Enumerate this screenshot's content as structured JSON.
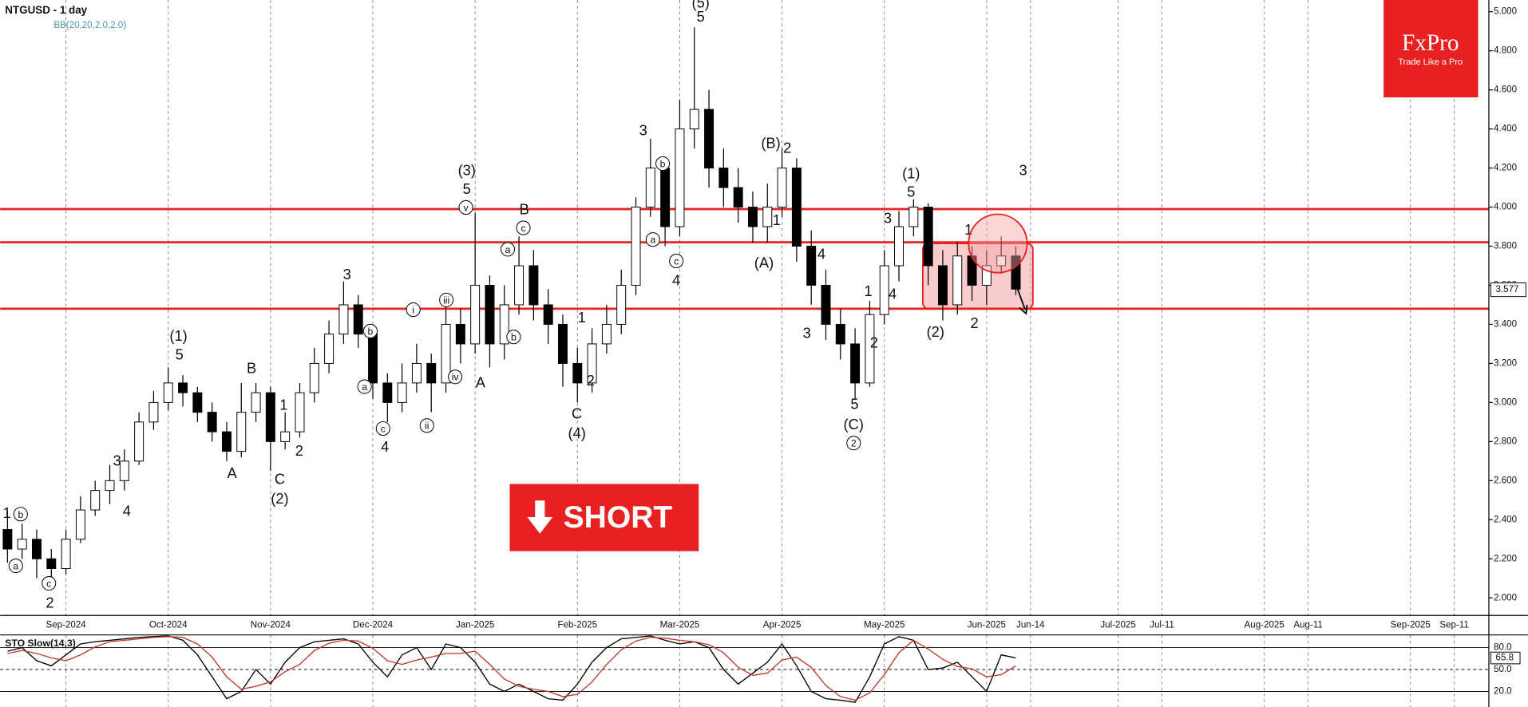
{
  "chart_data": [
    {
      "type": "candlestick",
      "title": "NTGUSD - 1 day",
      "subtitle": "BB(20,20,2.0,2.0)",
      "categories": [
        null,
        null,
        null,
        null,
        "Sep-2024",
        null,
        null,
        null,
        null,
        null,
        null,
        "Oct-2024",
        null,
        null,
        null,
        null,
        null,
        null,
        "Nov-2024",
        null,
        null,
        null,
        null,
        null,
        null,
        "Dec-2024",
        null,
        null,
        null,
        null,
        null,
        null,
        "Jan-2025",
        null,
        null,
        null,
        null,
        null,
        null,
        "Feb-2025",
        null,
        null,
        null,
        null,
        null,
        null,
        "Mar-2025",
        null,
        null,
        null,
        null,
        null,
        null,
        "Apr-2025",
        null,
        null,
        null,
        null,
        null,
        null,
        "May-2025",
        null,
        null,
        null,
        null,
        null,
        null,
        "Jun-2025",
        null,
        null,
        "Jun-14",
        null,
        null,
        null,
        null,
        null,
        "Jul-2025",
        null,
        null,
        "Jul-11",
        null,
        null,
        null,
        null,
        null,
        null,
        "Aug-2025",
        null,
        null,
        "Aug-11",
        null,
        null,
        null,
        null,
        null,
        null,
        "Sep-2025",
        null,
        null,
        "Sep-11",
        null,
        null
      ],
      "open": [
        2.35,
        2.25,
        2.3,
        2.2,
        2.15,
        2.3,
        2.45,
        2.55,
        2.6,
        2.7,
        2.9,
        3.0,
        3.1,
        3.05,
        2.95,
        2.85,
        2.75,
        2.95,
        3.05,
        2.8,
        2.85,
        3.05,
        3.2,
        3.35,
        3.5,
        3.35,
        3.1,
        3.0,
        3.1,
        3.2,
        3.1,
        3.4,
        3.3,
        3.6,
        3.3,
        3.5,
        3.7,
        3.5,
        3.4,
        3.2,
        3.1,
        3.3,
        3.4,
        3.6,
        4.0,
        4.2,
        3.9,
        4.4,
        4.5,
        4.2,
        4.1,
        4.0,
        3.9,
        4.0,
        4.2,
        3.8,
        3.6,
        3.4,
        3.3,
        3.1,
        3.45,
        3.7,
        3.9,
        4.0,
        3.7,
        3.5,
        3.75,
        3.6,
        3.7,
        3.75,
        null,
        null,
        null,
        null,
        null,
        null,
        null,
        null,
        null,
        null,
        null,
        null,
        null,
        null,
        null,
        null,
        null,
        null,
        null,
        null,
        null,
        null,
        null,
        null,
        null,
        null,
        null,
        null,
        null,
        null,
        null,
        null
      ],
      "high": [
        2.45,
        2.38,
        2.35,
        2.25,
        2.35,
        2.52,
        2.6,
        2.68,
        2.76,
        2.95,
        3.06,
        3.18,
        3.14,
        3.08,
        3.0,
        2.9,
        3.1,
        3.1,
        3.08,
        2.95,
        3.1,
        3.28,
        3.42,
        3.62,
        3.55,
        3.4,
        3.15,
        3.2,
        3.3,
        3.25,
        3.5,
        3.48,
        3.97,
        3.65,
        3.6,
        3.85,
        3.78,
        3.58,
        3.45,
        3.28,
        3.38,
        3.5,
        3.68,
        4.05,
        4.35,
        4.25,
        4.55,
        4.92,
        4.6,
        4.3,
        4.2,
        4.08,
        4.12,
        4.3,
        4.25,
        3.88,
        3.68,
        3.48,
        3.38,
        3.52,
        3.78,
        3.98,
        4.04,
        4.02,
        3.78,
        3.82,
        3.8,
        3.78,
        3.85,
        3.8,
        null,
        null,
        null,
        null,
        null,
        null,
        null,
        null,
        null,
        null,
        null,
        null,
        null,
        null,
        null,
        null,
        null,
        null,
        null,
        null,
        null,
        null,
        null,
        null,
        null,
        null,
        null,
        null,
        null,
        null,
        null,
        null
      ],
      "low": [
        2.18,
        2.2,
        2.1,
        2.1,
        2.12,
        2.28,
        2.42,
        2.48,
        2.55,
        2.68,
        2.86,
        2.96,
        2.98,
        2.9,
        2.8,
        2.7,
        2.72,
        2.9,
        2.65,
        2.76,
        2.82,
        3.0,
        3.15,
        3.3,
        3.28,
        3.02,
        2.9,
        2.95,
        3.05,
        2.95,
        3.05,
        3.2,
        3.25,
        3.18,
        3.22,
        3.45,
        3.42,
        3.3,
        3.08,
        3.0,
        3.05,
        3.25,
        3.35,
        3.55,
        3.95,
        3.8,
        3.85,
        4.3,
        4.1,
        4.0,
        3.92,
        3.82,
        3.82,
        3.95,
        3.72,
        3.5,
        3.32,
        3.22,
        3.02,
        3.08,
        3.4,
        3.62,
        3.85,
        3.6,
        3.42,
        3.45,
        3.52,
        3.5,
        3.66,
        3.55,
        null,
        null,
        null,
        null,
        null,
        null,
        null,
        null,
        null,
        null,
        null,
        null,
        null,
        null,
        null,
        null,
        null,
        null,
        null,
        null,
        null,
        null,
        null,
        null,
        null,
        null,
        null,
        null,
        null,
        null,
        null,
        null
      ],
      "close": [
        2.25,
        2.3,
        2.2,
        2.15,
        2.3,
        2.45,
        2.55,
        2.6,
        2.7,
        2.9,
        3.0,
        3.1,
        3.05,
        2.95,
        2.85,
        2.75,
        2.95,
        3.05,
        2.8,
        2.85,
        3.05,
        3.2,
        3.35,
        3.5,
        3.35,
        3.1,
        3.0,
        3.1,
        3.2,
        3.1,
        3.4,
        3.3,
        3.6,
        3.3,
        3.5,
        3.7,
        3.5,
        3.4,
        3.2,
        3.1,
        3.3,
        3.4,
        3.6,
        4.0,
        4.2,
        3.9,
        4.4,
        4.5,
        4.2,
        4.1,
        4.0,
        3.9,
        4.0,
        4.2,
        3.8,
        3.6,
        3.4,
        3.3,
        3.1,
        3.45,
        3.7,
        3.9,
        4.0,
        3.7,
        3.5,
        3.75,
        3.6,
        3.7,
        3.75,
        3.58,
        null,
        null,
        null,
        null,
        null,
        null,
        null,
        null,
        null,
        null,
        null,
        null,
        null,
        null,
        null,
        null,
        null,
        null,
        null,
        null,
        null,
        null,
        null,
        null,
        null,
        null,
        null,
        null,
        null,
        null,
        null,
        null
      ],
      "up_color": "#ffffff",
      "down_color": "#000000",
      "ylim": [
        1.91,
        5.06
      ],
      "yticks": [
        {
          "value": 2.0,
          "label": "2.000"
        },
        {
          "value": 2.2,
          "label": "2.200"
        },
        {
          "value": 2.4,
          "label": "2.400"
        },
        {
          "value": 2.6,
          "label": "2.600"
        },
        {
          "value": 2.8,
          "label": "2.800"
        },
        {
          "value": 3.0,
          "label": "3.000"
        },
        {
          "value": 3.2,
          "label": "3.200"
        },
        {
          "value": 3.4,
          "label": "3.400"
        },
        {
          "value": 3.6,
          "label": "3.600"
        },
        {
          "value": 3.8,
          "label": "3.800"
        },
        {
          "value": 4.0,
          "label": "4.000"
        },
        {
          "value": 4.2,
          "label": "4.200"
        },
        {
          "value": 4.4,
          "label": "4.400"
        },
        {
          "value": 4.6,
          "label": "4.600"
        },
        {
          "value": 4.8,
          "label": "4.800"
        },
        {
          "value": 5.0,
          "label": "5.000"
        }
      ],
      "last_price": 3.577,
      "levels": [
        3.99,
        3.82,
        3.48
      ],
      "level_color": "#e8201f",
      "x_grid": true,
      "wave_labels": [
        {
          "text": "1",
          "circled": false
        },
        {
          "text": "b",
          "circled": true
        },
        {
          "text": "a",
          "circled": true
        },
        {
          "text": "c",
          "circled": true
        },
        {
          "text": "2",
          "circled": false
        },
        {
          "text": "3",
          "circled": false
        },
        {
          "text": "4",
          "circled": false
        },
        {
          "text": "(1)",
          "circled": false
        },
        {
          "text": "5",
          "circled": false
        },
        {
          "text": "B",
          "circled": false
        },
        {
          "text": "A",
          "circled": false
        },
        {
          "text": "1",
          "circled": false
        },
        {
          "text": "2",
          "circled": false
        },
        {
          "text": "C",
          "circled": false
        },
        {
          "text": "(2)",
          "circled": false
        },
        {
          "text": "3",
          "circled": false
        },
        {
          "text": "b",
          "circled": true
        },
        {
          "text": "a",
          "circled": true
        },
        {
          "text": "c",
          "circled": true
        },
        {
          "text": "4",
          "circled": false
        },
        {
          "text": "i",
          "circled": true
        },
        {
          "text": "ii",
          "circled": true
        },
        {
          "text": "iii",
          "circled": true
        },
        {
          "text": "iv",
          "circled": true
        },
        {
          "text": "v",
          "circled": true
        },
        {
          "text": "(3)",
          "circled": false
        },
        {
          "text": "5",
          "circled": false
        },
        {
          "text": "B",
          "circled": false
        },
        {
          "text": "c",
          "circled": true
        },
        {
          "text": "a",
          "circled": true
        },
        {
          "text": "b",
          "circled": true
        },
        {
          "text": "A",
          "circled": false
        },
        {
          "text": "1",
          "circled": false
        },
        {
          "text": "2",
          "circled": false
        },
        {
          "text": "C",
          "circled": false
        },
        {
          "text": "(4)",
          "circled": false
        },
        {
          "text": "3",
          "circled": false
        },
        {
          "text": "b",
          "circled": true
        },
        {
          "text": "a",
          "circled": true
        },
        {
          "text": "c",
          "circled": true
        },
        {
          "text": "4",
          "circled": false
        },
        {
          "text": "(5)",
          "circled": false
        },
        {
          "text": "5",
          "circled": false
        },
        {
          "text": "(B)",
          "circled": false
        },
        {
          "text": "2",
          "circled": false
        },
        {
          "text": "1",
          "circled": false
        },
        {
          "text": "(A)",
          "circled": false
        },
        {
          "text": "4",
          "circled": false
        },
        {
          "text": "3",
          "circled": false
        },
        {
          "text": "5",
          "circled": false
        },
        {
          "text": "(C)",
          "circled": false
        },
        {
          "text": "2",
          "circled": true
        },
        {
          "text": "1",
          "circled": false
        },
        {
          "text": "2",
          "circled": false
        },
        {
          "text": "3",
          "circled": false
        },
        {
          "text": "4",
          "circled": false
        },
        {
          "text": "(1)",
          "circled": false
        },
        {
          "text": "5",
          "circled": false
        },
        {
          "text": "(2)",
          "circled": false
        },
        {
          "text": "1",
          "circled": false
        },
        {
          "text": "2",
          "circled": false
        },
        {
          "text": "3",
          "circled": false
        }
      ]
    },
    {
      "type": "line",
      "title": "STO Slow(14,3)",
      "series": [
        {
          "color": "#000000",
          "values": [
            75,
            80,
            62,
            55,
            70,
            85,
            88,
            90,
            92,
            94,
            95,
            96,
            90,
            70,
            40,
            10,
            20,
            50,
            30,
            60,
            80,
            88,
            90,
            92,
            85,
            60,
            40,
            70,
            80,
            50,
            85,
            80,
            60,
            30,
            20,
            30,
            20,
            10,
            8,
            30,
            60,
            80,
            92,
            94,
            96,
            90,
            85,
            88,
            80,
            50,
            30,
            45,
            60,
            85,
            55,
            20,
            10,
            8,
            5,
            40,
            85,
            95,
            90,
            50,
            52,
            60,
            40,
            20,
            70,
            65.8
          ]
        },
        {
          "color": "#c0392b",
          "values": [
            72,
            76,
            72,
            66,
            62,
            70,
            81,
            88,
            90,
            92,
            94,
            95,
            94,
            85,
            67,
            40,
            23,
            27,
            33,
            47,
            57,
            76,
            86,
            90,
            89,
            79,
            62,
            57,
            63,
            67,
            72,
            72,
            75,
            57,
            37,
            27,
            23,
            20,
            13,
            16,
            33,
            57,
            77,
            89,
            94,
            93,
            90,
            88,
            84,
            73,
            53,
            42,
            45,
            63,
            67,
            53,
            28,
            13,
            8,
            18,
            43,
            73,
            90,
            78,
            64,
            54,
            51,
            40,
            43,
            55
          ]
        }
      ],
      "ylim": [
        0,
        100
      ],
      "yticks": [
        {
          "value": 20,
          "label": "20.0"
        },
        {
          "value": 50,
          "label": "50.0"
        },
        {
          "value": 80,
          "label": "80.0"
        }
      ],
      "grid_dash": [
        false,
        true,
        false
      ],
      "current_value": 65.8
    }
  ],
  "logo": {
    "name": "FxPro",
    "tagline": "Trade Like a Pro"
  },
  "signal": "SHORT"
}
